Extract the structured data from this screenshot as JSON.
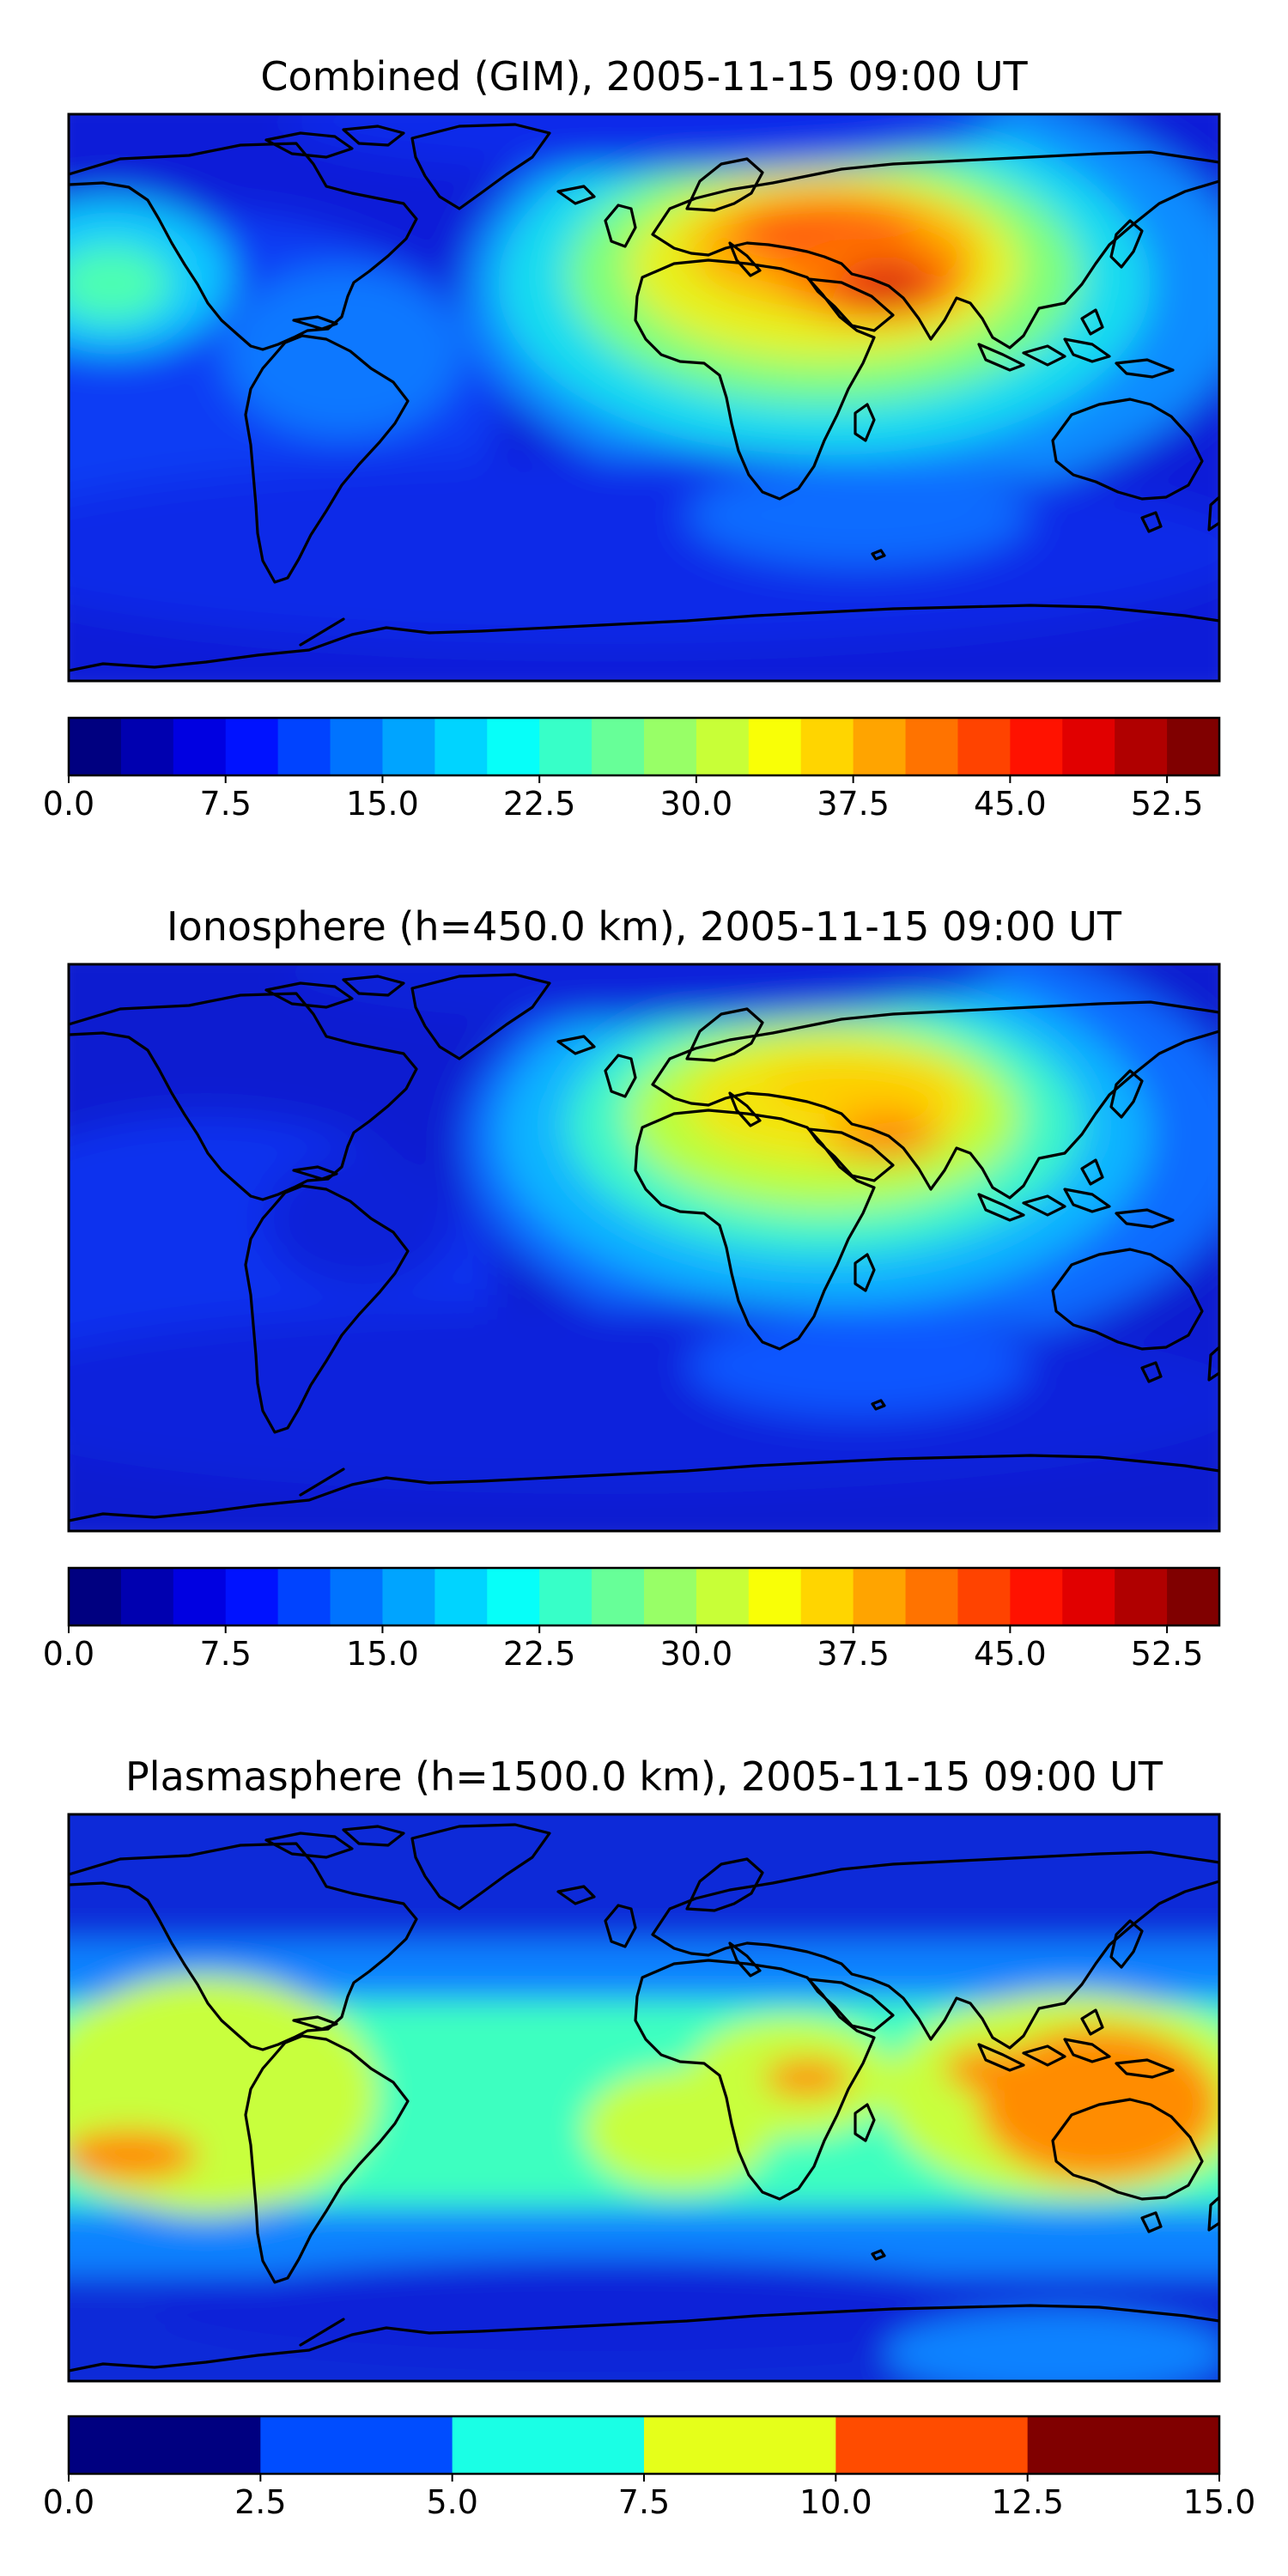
{
  "panels": [
    {
      "id": "combined",
      "title": "Combined (GIM), 2005-11-15 09:00 UT",
      "colorbar": {
        "colormap": "jet",
        "vmin": 0,
        "vmax": 55,
        "levels": 22,
        "tick_labels": [
          "0.0",
          "7.5",
          "15.0",
          "22.5",
          "30.0",
          "37.5",
          "45.0",
          "52.5"
        ],
        "tick_values": [
          0,
          7.5,
          15,
          22.5,
          30,
          37.5,
          45,
          52.5
        ]
      }
    },
    {
      "id": "ionosphere",
      "title": "Ionosphere  (h=450.0 km), 2005-11-15 09:00 UT",
      "colorbar": {
        "colormap": "jet",
        "vmin": 0,
        "vmax": 55,
        "levels": 22,
        "tick_labels": [
          "0.0",
          "7.5",
          "15.0",
          "22.5",
          "30.0",
          "37.5",
          "45.0",
          "52.5"
        ],
        "tick_values": [
          0,
          7.5,
          15,
          22.5,
          30,
          37.5,
          45,
          52.5
        ]
      }
    },
    {
      "id": "plasmasphere",
      "title": "Plasmasphere (h=1500.0 km), 2005-11-15 09:00 UT",
      "colorbar": {
        "colormap": "jet",
        "vmin": 0,
        "vmax": 15,
        "levels": 6,
        "tick_labels": [
          "0.0",
          "2.5",
          "5.0",
          "7.5",
          "10.0",
          "12.5",
          "15.0"
        ],
        "tick_values": [
          0,
          2.5,
          5,
          7.5,
          10,
          12.5,
          15
        ]
      }
    }
  ]
}
